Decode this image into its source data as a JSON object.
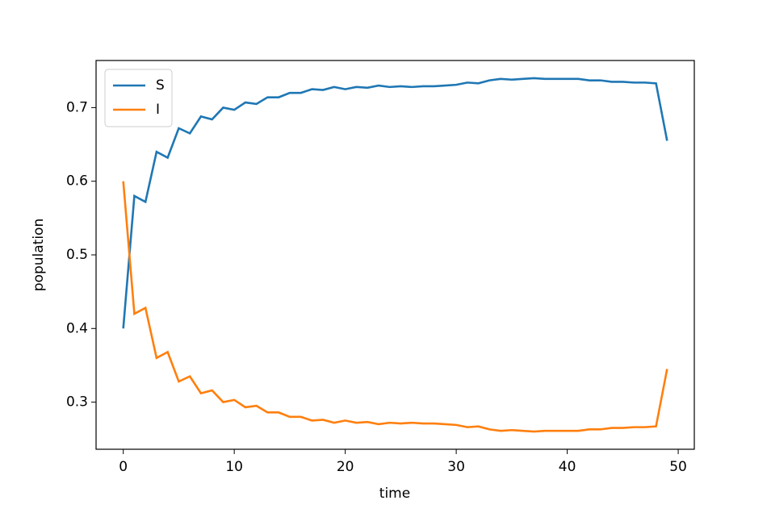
{
  "chart_data": {
    "type": "line",
    "x_label": "time",
    "y_label": "population",
    "x": [
      0,
      1,
      2,
      3,
      4,
      5,
      6,
      7,
      8,
      9,
      10,
      11,
      12,
      13,
      14,
      15,
      16,
      17,
      18,
      19,
      20,
      21,
      22,
      23,
      24,
      25,
      26,
      27,
      28,
      29,
      30,
      31,
      32,
      33,
      34,
      35,
      36,
      37,
      38,
      39,
      40,
      41,
      42,
      43,
      44,
      45,
      46,
      47,
      48,
      49
    ],
    "series": [
      {
        "name": "S",
        "color": "#1f77b4",
        "values": [
          0.4,
          0.58,
          0.572,
          0.64,
          0.632,
          0.672,
          0.665,
          0.688,
          0.684,
          0.7,
          0.697,
          0.707,
          0.705,
          0.714,
          0.714,
          0.72,
          0.72,
          0.725,
          0.724,
          0.728,
          0.725,
          0.728,
          0.727,
          0.73,
          0.728,
          0.729,
          0.728,
          0.729,
          0.729,
          0.73,
          0.731,
          0.734,
          0.733,
          0.737,
          0.739,
          0.738,
          0.739,
          0.74,
          0.739,
          0.739,
          0.739,
          0.739,
          0.737,
          0.737,
          0.735,
          0.735,
          0.734,
          0.734,
          0.733,
          0.655
        ]
      },
      {
        "name": "I",
        "color": "#ff7f0e",
        "values": [
          0.6,
          0.42,
          0.428,
          0.36,
          0.368,
          0.328,
          0.335,
          0.312,
          0.316,
          0.3,
          0.303,
          0.293,
          0.295,
          0.286,
          0.286,
          0.28,
          0.28,
          0.275,
          0.276,
          0.272,
          0.275,
          0.272,
          0.273,
          0.27,
          0.272,
          0.271,
          0.272,
          0.271,
          0.271,
          0.27,
          0.269,
          0.266,
          0.267,
          0.263,
          0.261,
          0.262,
          0.261,
          0.26,
          0.261,
          0.261,
          0.261,
          0.261,
          0.263,
          0.263,
          0.265,
          0.265,
          0.266,
          0.266,
          0.267,
          0.345
        ]
      }
    ],
    "xlim": [
      -2.45,
      51.45
    ],
    "xticks": [
      0,
      10,
      20,
      30,
      40,
      50
    ],
    "ylim": [
      0.236,
      0.764
    ],
    "yticks": [
      0.3,
      0.4,
      0.5,
      0.6,
      0.7
    ],
    "legend": "upper left",
    "grid": false
  }
}
